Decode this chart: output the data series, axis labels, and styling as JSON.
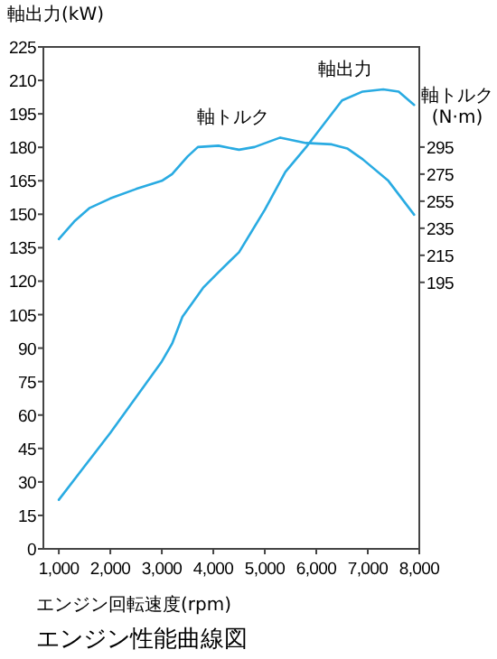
{
  "chart_data": {
    "type": "line",
    "title": "エンジン性能曲線図",
    "xlabel": "エンジン回転速度(rpm)",
    "ylabel": "軸出力(kW)",
    "y2label": "軸トルク\n(N·m)",
    "xlim": [
      700,
      8000
    ],
    "xticks": [
      {
        "value": 1000,
        "label": "1,000"
      },
      {
        "value": 2000,
        "label": "2,000"
      },
      {
        "value": 3000,
        "label": "3,000"
      },
      {
        "value": 4000,
        "label": "4,000"
      },
      {
        "value": 5000,
        "label": "5,000"
      },
      {
        "value": 6000,
        "label": "6,000"
      },
      {
        "value": 7000,
        "label": "7,000"
      },
      {
        "value": 8000,
        "label": "8,000"
      }
    ],
    "ylim": [
      0,
      225
    ],
    "yticks": [
      0,
      15,
      30,
      45,
      60,
      75,
      90,
      105,
      120,
      135,
      150,
      165,
      180,
      195,
      210,
      225
    ],
    "y2lim": [
      -2,
      369
    ],
    "y2ticks": [
      195,
      215,
      235,
      255,
      275,
      295
    ],
    "grid": false,
    "marker": "none",
    "line_style": "solid",
    "series": [
      {
        "name": "軸出力",
        "color": "#29abe2",
        "x": [
          1000,
          1500,
          2000,
          2500,
          3000,
          3200,
          3400,
          3800,
          4100,
          4500,
          5000,
          5400,
          5800,
          6200,
          6500,
          6900,
          7300,
          7600,
          7900
        ],
        "values": [
          22,
          37,
          52,
          68,
          84,
          92,
          104,
          117,
          124,
          133,
          152,
          169,
          180,
          192,
          201,
          205,
          206,
          205,
          199
        ]
      },
      {
        "name": "軸トルク",
        "color": "#29abe2",
        "axis": "y2",
        "x": [
          1000,
          1300,
          1600,
          2000,
          2500,
          3000,
          3200,
          3500,
          3700,
          4100,
          4500,
          4800,
          5300,
          5800,
          6300,
          6600,
          6900,
          7400,
          7900
        ],
        "values": [
          227,
          240,
          250,
          257,
          264,
          270,
          275,
          288,
          295,
          296,
          293,
          295,
          302,
          298,
          297,
          294,
          286,
          270,
          245
        ]
      }
    ]
  }
}
